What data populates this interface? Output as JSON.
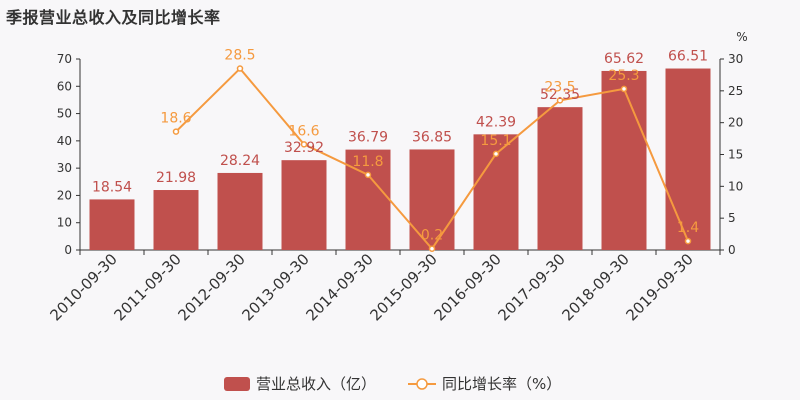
{
  "title": "季报营业总收入及同比增长率",
  "colors": {
    "bar": "#c0504d",
    "line": "#f59a3f",
    "axis": "#333333",
    "background": "#f8f7f9"
  },
  "chart_data": {
    "type": "bar",
    "categories": [
      "2010-09-30",
      "2011-09-30",
      "2012-09-30",
      "2013-09-30",
      "2014-09-30",
      "2015-09-30",
      "2016-09-30",
      "2017-09-30",
      "2018-09-30",
      "2019-09-30"
    ],
    "series": [
      {
        "name": "营业总收入（亿）",
        "type": "bar",
        "axis": "left",
        "values": [
          18.54,
          21.98,
          28.24,
          32.92,
          36.79,
          36.85,
          42.39,
          52.35,
          65.62,
          66.51
        ]
      },
      {
        "name": "同比增长率（%）",
        "type": "line",
        "axis": "right",
        "values": [
          null,
          18.6,
          28.5,
          16.6,
          11.8,
          0.2,
          15.1,
          23.5,
          25.3,
          1.4
        ]
      }
    ],
    "y_left": {
      "lim": [
        0,
        70
      ],
      "ticks": [
        0,
        10,
        20,
        30,
        40,
        50,
        60,
        70
      ]
    },
    "y_right": {
      "lim": [
        0,
        30
      ],
      "ticks": [
        0,
        5,
        10,
        15,
        20,
        25,
        30
      ],
      "label": "%"
    },
    "legend_position": "bottom-center"
  }
}
